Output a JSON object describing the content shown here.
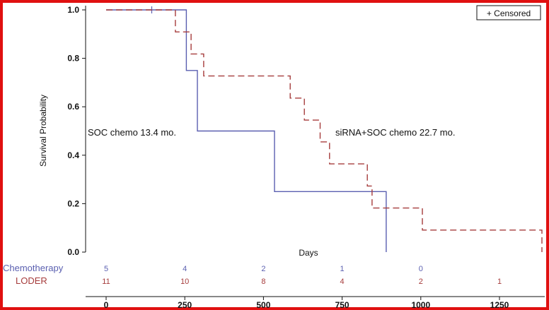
{
  "colors": {
    "frame": "#e01010",
    "chemotherapy": "#5a5fb0",
    "loder": "#a63c3c",
    "axis": "#111111"
  },
  "chart_data": {
    "type": "line",
    "subtype": "kaplan-meier-survival",
    "xlabel": "Days",
    "ylabel": "Survival Probability",
    "xlim": [
      0,
      1400
    ],
    "ylim": [
      0.0,
      1.0
    ],
    "x_ticks": [
      0,
      250,
      500,
      750,
      1000,
      1250
    ],
    "x_tick_labels": [
      "0",
      "250",
      "500",
      "750",
      "1000",
      "1250"
    ],
    "y_ticks": [
      0.0,
      0.2,
      0.4,
      0.6,
      0.8,
      1.0
    ],
    "y_tick_labels": [
      "0.0",
      "0.2",
      "0.4",
      "0.6",
      "0.8",
      "1.0"
    ],
    "legend": {
      "label": "+ Censored",
      "position": "top-right"
    },
    "annotations": [
      {
        "text": "SOC chemo 13.4 mo.",
        "series": "Chemotherapy"
      },
      {
        "text": "siRNA+SOC chemo 22.7 mo.",
        "series": "LODER"
      }
    ],
    "series": [
      {
        "name": "Chemotherapy",
        "style": "solid",
        "color": "#5a5fb0",
        "x": [
          0,
          255,
          255,
          290,
          290,
          535,
          535,
          890,
          890
        ],
        "y": [
          1.0,
          1.0,
          0.75,
          0.75,
          0.5,
          0.5,
          0.25,
          0.25,
          0.0
        ],
        "censored": [
          {
            "x": 145,
            "y": 1.0
          }
        ]
      },
      {
        "name": "LODER",
        "style": "dashed",
        "color": "#a63c3c",
        "x": [
          0,
          220,
          220,
          270,
          270,
          310,
          310,
          585,
          585,
          630,
          630,
          680,
          680,
          710,
          710,
          830,
          830,
          845,
          845,
          1005,
          1005,
          1385,
          1385
        ],
        "y": [
          1.0,
          1.0,
          0.909,
          0.909,
          0.818,
          0.818,
          0.727,
          0.727,
          0.636,
          0.636,
          0.545,
          0.545,
          0.455,
          0.455,
          0.364,
          0.364,
          0.273,
          0.273,
          0.182,
          0.182,
          0.091,
          0.091,
          0.0
        ],
        "censored": []
      }
    ],
    "risk_table": {
      "times": [
        0,
        250,
        500,
        750,
        1000,
        1250
      ],
      "rows": [
        {
          "label": "Chemotherapy",
          "color": "#5a5fb0",
          "counts": [
            "5",
            "4",
            "2",
            "1",
            "0",
            ""
          ]
        },
        {
          "label": "LODER",
          "color": "#a63c3c",
          "counts": [
            "11",
            "10",
            "8",
            "4",
            "2",
            "1"
          ]
        }
      ]
    }
  }
}
